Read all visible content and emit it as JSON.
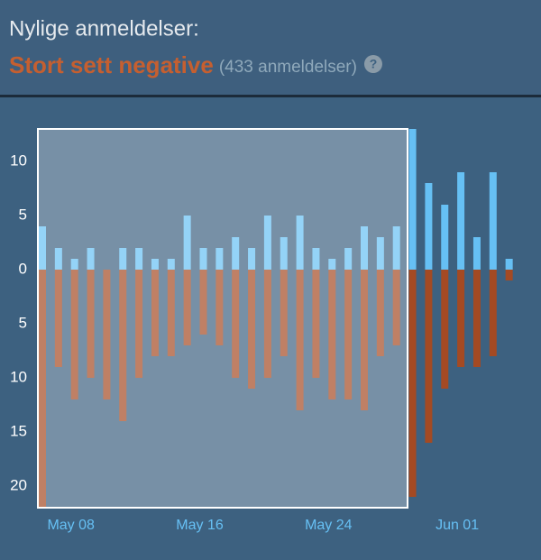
{
  "chart_data": {
    "type": "bar",
    "title": "Nylige anmeldelser:",
    "summary": "Stort sett negative",
    "review_count": "(433 anmeldelser)",
    "help": "?",
    "categories": [
      null,
      null,
      "May 08",
      null,
      null,
      null,
      null,
      null,
      null,
      null,
      "May 16",
      null,
      null,
      null,
      null,
      null,
      null,
      null,
      "May 24",
      null,
      null,
      null,
      null,
      null,
      null,
      null,
      "Jun 01",
      null,
      null,
      null
    ],
    "series": [
      {
        "color": "#66c0f4",
        "values": [
          4,
          2,
          1,
          2,
          0,
          2,
          2,
          1,
          1,
          5,
          2,
          2,
          3,
          2,
          5,
          3,
          5,
          2,
          1,
          2,
          4,
          3,
          4,
          13,
          8,
          6,
          9,
          3,
          9,
          1
        ]
      },
      {
        "color": "#a44a23",
        "values": [
          -22,
          -9,
          -12,
          -10,
          -12,
          -14,
          -10,
          -8,
          -8,
          -7,
          -6,
          -7,
          -10,
          -11,
          -10,
          -8,
          -13,
          -10,
          -12,
          -12,
          -13,
          -8,
          -7,
          -21,
          -16,
          -11,
          -9,
          -9,
          -8,
          -1
        ]
      }
    ],
    "ylim": [
      -22,
      13
    ],
    "yticks": [
      10,
      5,
      0,
      {
        "value": -5,
        "label": "5"
      },
      {
        "value": -10,
        "label": "10"
      },
      {
        "value": -15,
        "label": "15"
      },
      {
        "value": -20,
        "label": "20"
      }
    ]
  }
}
